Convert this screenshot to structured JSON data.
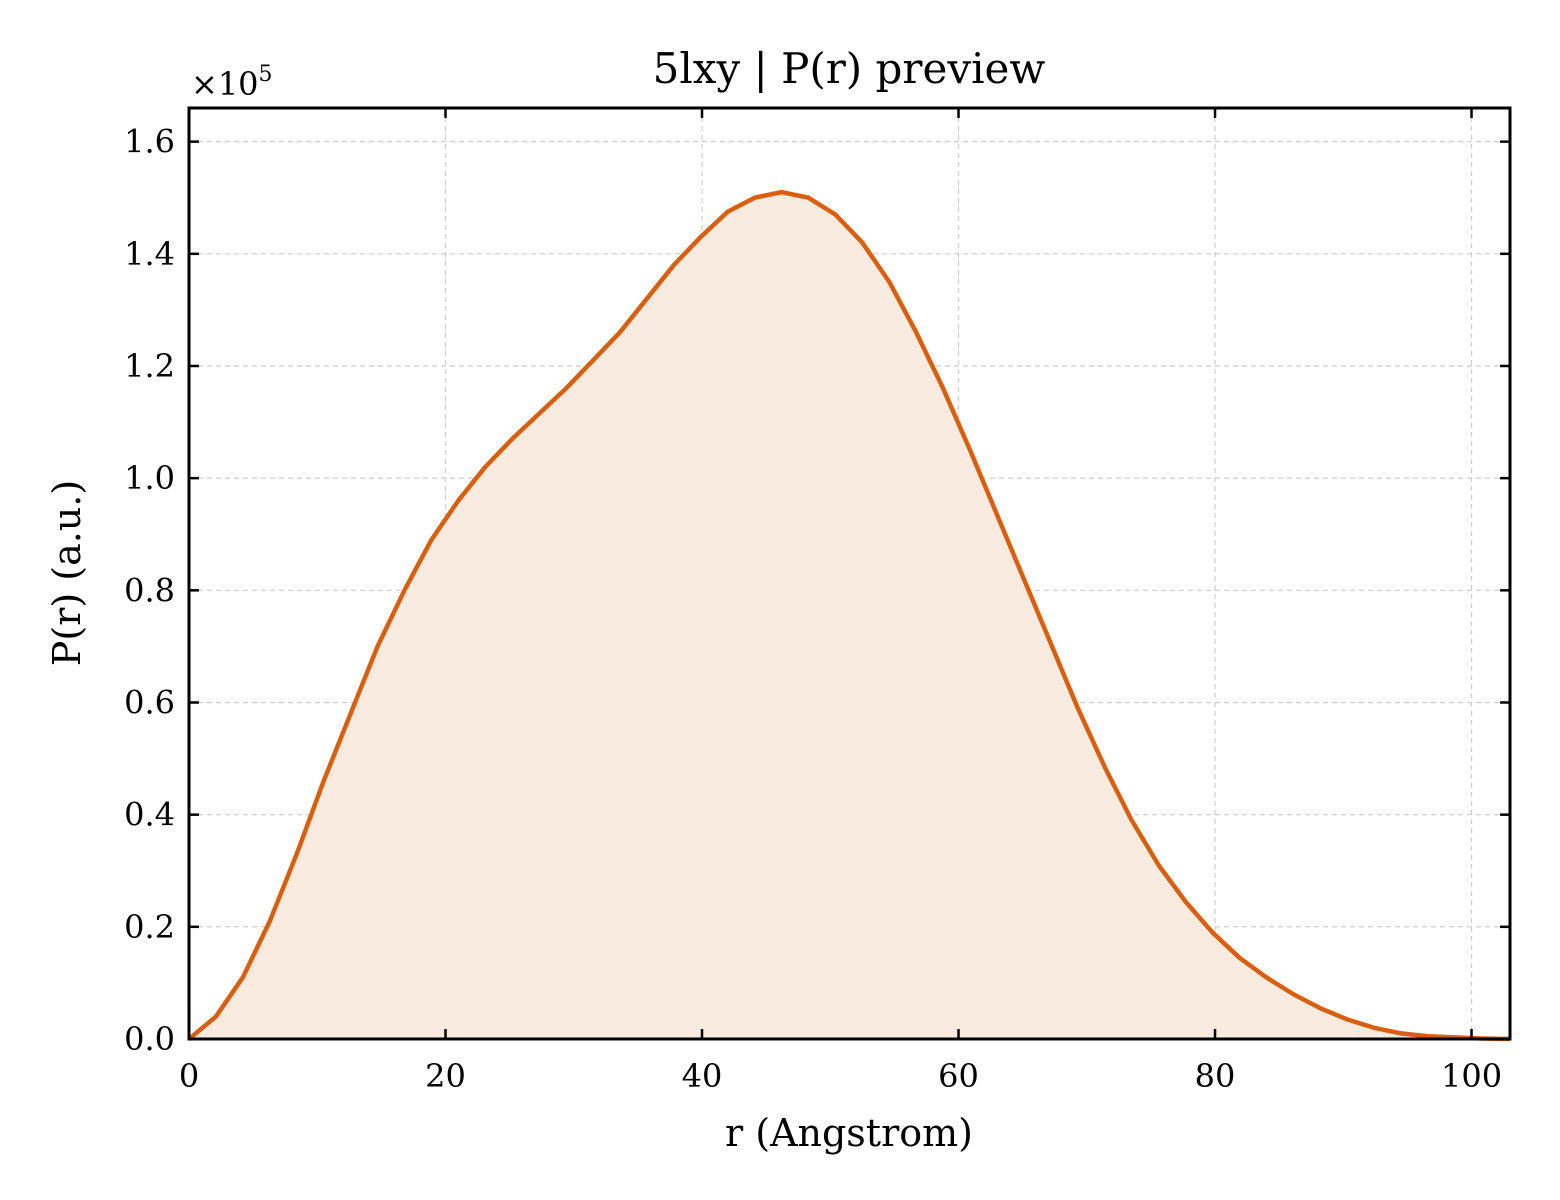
{
  "chart_data": {
    "type": "area",
    "title": "5lxy | P(r) preview",
    "xlabel": "r (Angstrom)",
    "ylabel": "P(r) (a.u.)",
    "y_multiplier_label": "×10",
    "y_multiplier_exponent": "5",
    "xlim": [
      0,
      103
    ],
    "ylim": [
      0,
      1.66
    ],
    "x_ticks": [
      0,
      20,
      40,
      60,
      80,
      100
    ],
    "x_tick_labels": [
      "0",
      "20",
      "40",
      "60",
      "80",
      "100"
    ],
    "y_ticks": [
      0,
      0.2,
      0.4,
      0.6,
      0.8,
      1.0,
      1.2,
      1.4,
      1.6
    ],
    "y_tick_labels": [
      "0.0",
      "0.2",
      "0.4",
      "0.6",
      "0.8",
      "1.0",
      "1.2",
      "1.4",
      "1.6"
    ],
    "grid": true,
    "line_color": "#d95f0e",
    "fill_color": "#f9ebe0",
    "series": [
      {
        "x": [
          0,
          2.1,
          4.2,
          6.3,
          8.4,
          10.5,
          12.6,
          14.7,
          16.8,
          18.9,
          21.0,
          23.1,
          25.2,
          27.3,
          29.4,
          31.5,
          33.6,
          35.7,
          37.8,
          39.9,
          42.0,
          44.1,
          46.2,
          48.3,
          50.4,
          52.5,
          54.6,
          56.7,
          58.8,
          60.9,
          63.0,
          65.1,
          67.2,
          69.3,
          71.4,
          73.5,
          75.6,
          77.7,
          79.8,
          81.9,
          84.0,
          86.1,
          88.2,
          90.3,
          92.4,
          94.5,
          96.6,
          98.7,
          100.8,
          103.0
        ],
        "y": [
          0.0,
          0.04,
          0.11,
          0.21,
          0.33,
          0.46,
          0.58,
          0.7,
          0.8,
          0.89,
          0.96,
          1.02,
          1.07,
          1.115,
          1.16,
          1.21,
          1.26,
          1.32,
          1.38,
          1.43,
          1.475,
          1.5,
          1.51,
          1.5,
          1.47,
          1.42,
          1.35,
          1.26,
          1.16,
          1.05,
          0.935,
          0.82,
          0.705,
          0.59,
          0.485,
          0.39,
          0.31,
          0.245,
          0.19,
          0.145,
          0.11,
          0.08,
          0.055,
          0.035,
          0.02,
          0.01,
          0.005,
          0.003,
          0.001,
          0.0
        ]
      }
    ]
  }
}
